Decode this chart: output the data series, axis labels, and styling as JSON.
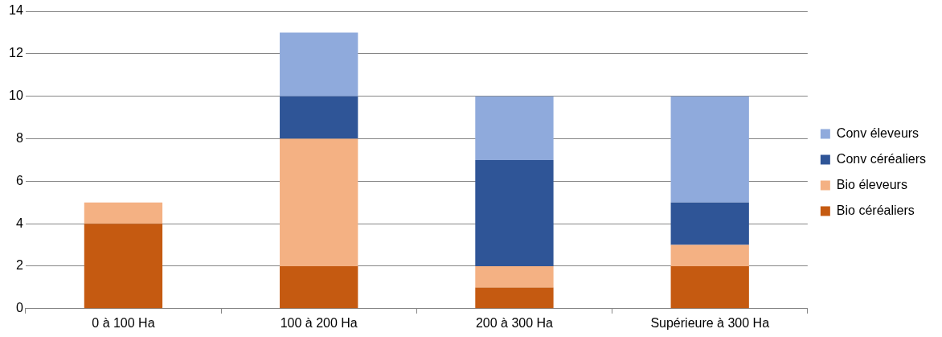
{
  "chart_data": {
    "type": "bar",
    "stacked": true,
    "categories": [
      "0 à 100 Ha",
      "100 à 200 Ha",
      "200 à 300 Ha",
      "Supérieure à 300 Ha"
    ],
    "series": [
      {
        "name": "Bio céréaliers",
        "color": "#c55a11",
        "values": [
          4,
          2,
          1,
          2
        ]
      },
      {
        "name": "Bio éleveurs",
        "color": "#f4b183",
        "values": [
          1,
          6,
          1,
          1
        ]
      },
      {
        "name": "Conv céréaliers",
        "color": "#2f5597",
        "values": [
          0,
          2,
          5,
          2
        ]
      },
      {
        "name": "Conv éleveurs",
        "color": "#8faadc",
        "values": [
          0,
          3,
          3,
          5
        ]
      }
    ],
    "ylim": [
      0,
      14
    ],
    "yticks": [
      0,
      2,
      4,
      6,
      8,
      10,
      12,
      14
    ],
    "grid": "y",
    "legend": "right"
  }
}
